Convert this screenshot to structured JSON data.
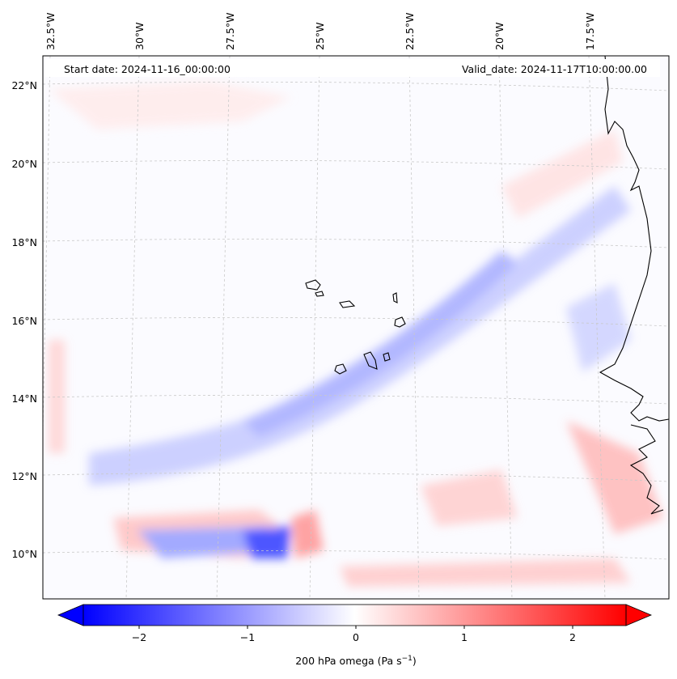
{
  "header": {
    "start_date": "Start date: 2024-11-16_00:00:00",
    "valid_date": "Valid_date: 2024-11-17T10:00:00.00"
  },
  "map": {
    "lon_labels": [
      "32.5°W",
      "30°W",
      "27.5°W",
      "25°W",
      "22.5°W",
      "20°W",
      "17.5°W"
    ],
    "lat_labels": [
      "22°N",
      "20°N",
      "18°N",
      "16°N",
      "14°N",
      "12°N",
      "10°N"
    ],
    "gridlines": "dashed"
  },
  "colorbar": {
    "ticks": [
      "−2",
      "−1",
      "0",
      "1",
      "2"
    ],
    "label": "200 hPa omega (Pa s",
    "label_sup": "−1",
    "label_end": ")",
    "vmin": -2.6,
    "vmax": 2.6,
    "extend": "both",
    "colormap": "bwr",
    "low_color": "#0000ff",
    "mid_color": "#ffffff",
    "high_color": "#ff0000"
  }
}
